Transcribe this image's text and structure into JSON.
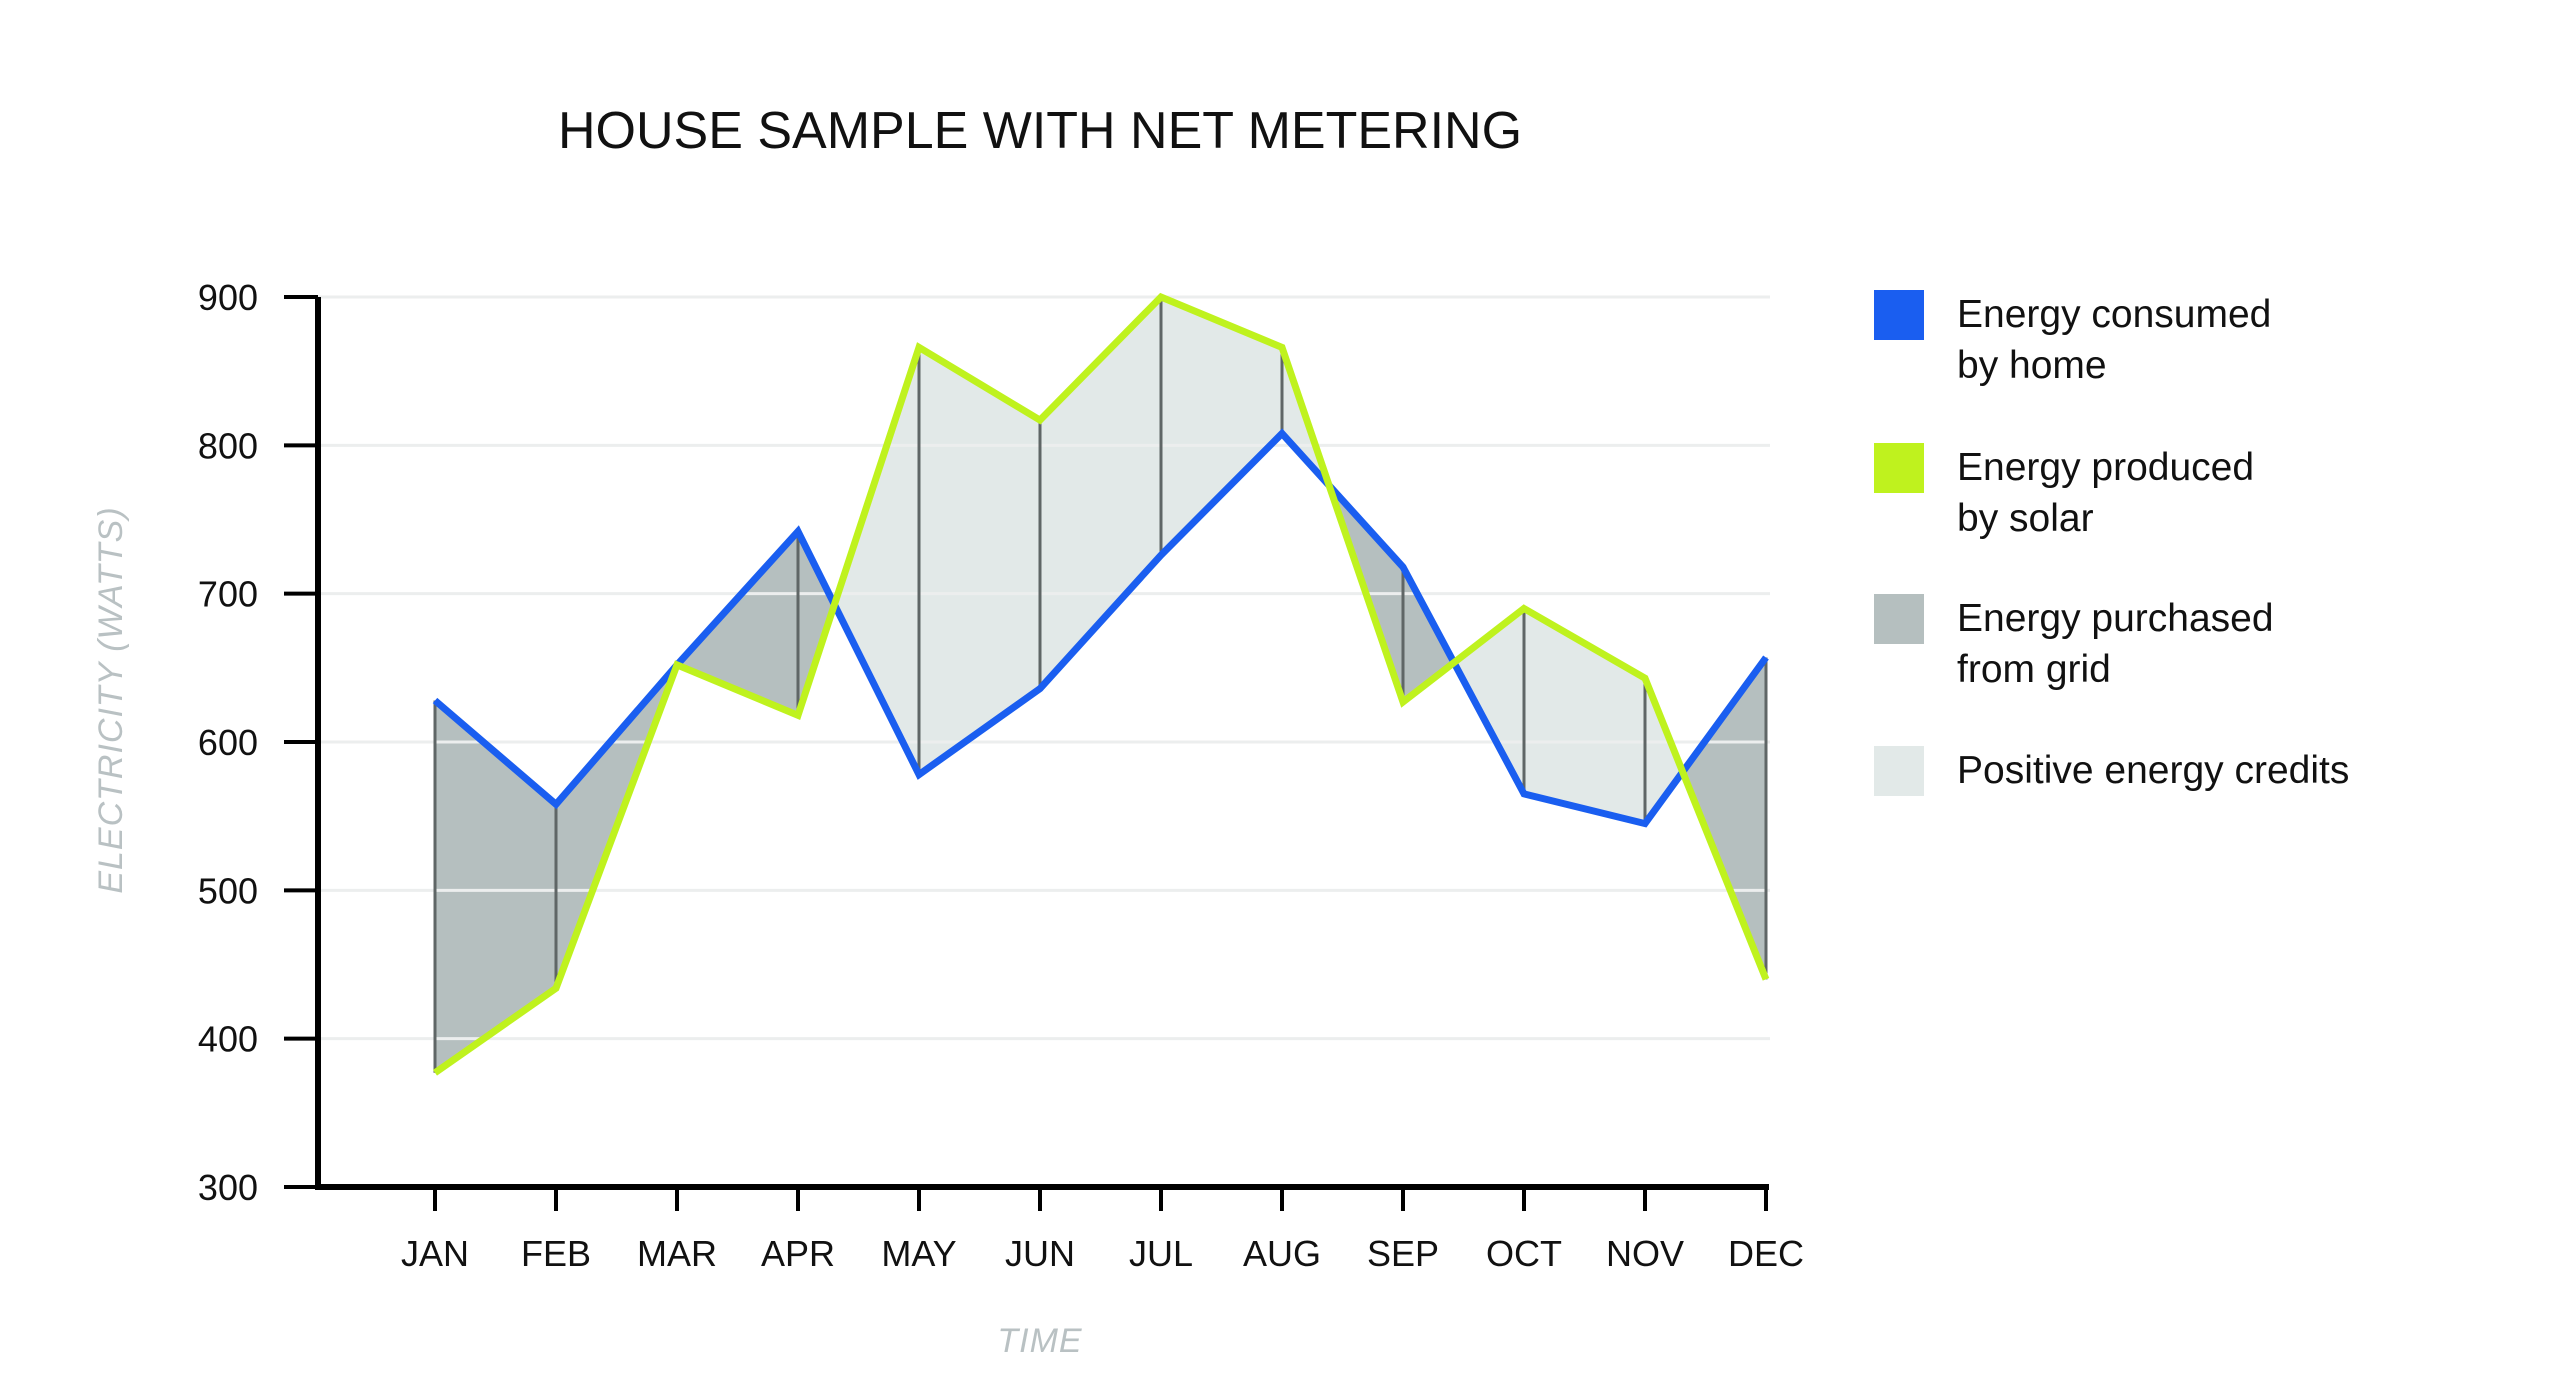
{
  "chart_data": {
    "type": "line",
    "title": "HOUSE SAMPLE WITH NET METERING",
    "xlabel": "TIME",
    "ylabel": "ELECTRICITY (WATTS)",
    "ylim": [
      300,
      900
    ],
    "yticks": [
      300,
      400,
      500,
      600,
      700,
      800,
      900
    ],
    "grid": true,
    "categories": [
      "JAN",
      "FEB",
      "MAR",
      "APR",
      "MAY",
      "JUN",
      "JUL",
      "AUG",
      "SEP",
      "OCT",
      "NOV",
      "DEC"
    ],
    "series": [
      {
        "name": "Energy consumed by home",
        "color": "#1a5ef0",
        "values": [
          628,
          558,
          652,
          742,
          578,
          636,
          726,
          808,
          718,
          565,
          545,
          657
        ]
      },
      {
        "name": "Energy produced by solar",
        "color": "#bff21e",
        "values": [
          377,
          434,
          652,
          618,
          866,
          817,
          900,
          866,
          627,
          690,
          643,
          440
        ]
      }
    ],
    "fill_colors": {
      "purchased": "#b5bfbf",
      "credits": "#e2e9e8",
      "connector": "#5f6666",
      "grid": "#eceeee"
    },
    "legend": [
      {
        "label_lines": [
          "Energy consumed",
          "by home"
        ],
        "color": "#1a5ef0"
      },
      {
        "label_lines": [
          "Energy produced",
          "by solar"
        ],
        "color": "#bff21e"
      },
      {
        "label_lines": [
          "Energy purchased",
          "from grid"
        ],
        "color": "#b5bfbf"
      },
      {
        "label_lines": [
          "Positive energy credits"
        ],
        "color": "#e2e9e8"
      }
    ]
  }
}
